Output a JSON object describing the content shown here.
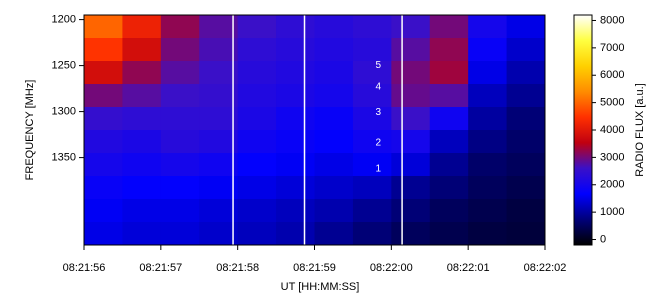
{
  "chart_data": {
    "type": "heatmap",
    "xlabel": "UT [HH:MM:SS]",
    "ylabel": "FREQUENCY [MHz]",
    "colorbar_label": "RADIO FLUX [a.u.]",
    "xlim": [
      30116,
      30122
    ],
    "ylim": [
      1195,
      1445
    ],
    "y_inverted": true,
    "xticks": [
      {
        "value": 30116,
        "label": "08:21:56"
      },
      {
        "value": 30117,
        "label": "08:21:57"
      },
      {
        "value": 30118,
        "label": "08:21:58"
      },
      {
        "value": 30119,
        "label": "08:21:59"
      },
      {
        "value": 30120,
        "label": "08:22:00"
      },
      {
        "value": 30121,
        "label": "08:22:01"
      },
      {
        "value": 30122,
        "label": "08:22:02"
      }
    ],
    "yticks": [
      1200,
      1250,
      1300,
      1350
    ],
    "clim": [
      -200,
      8200
    ],
    "cticks": [
      0,
      1000,
      2000,
      3000,
      4000,
      5000,
      6000,
      7000,
      8000
    ],
    "colormap": [
      "#000000",
      "#00007a",
      "#0000ff",
      "#3a10c8",
      "#c00010",
      "#ff3000",
      "#ff8c00",
      "#ffd000",
      "#ffff40",
      "#ffffff"
    ],
    "x": [
      30116.25,
      30116.75,
      30117.25,
      30117.75,
      30118.25,
      30118.75,
      30119.25,
      30119.75,
      30120.25,
      30120.75,
      30121.25,
      30121.75
    ],
    "y": [
      1207.5,
      1232.5,
      1257.5,
      1282.5,
      1307.5,
      1332.5,
      1357.5,
      1382.5,
      1407.5,
      1432.5
    ],
    "values": [
      [
        5000,
        4200,
        3200,
        2800,
        2600,
        2400,
        2300,
        2400,
        2600,
        3000,
        2000,
        1500
      ],
      [
        4500,
        3800,
        3000,
        2700,
        2400,
        2300,
        2200,
        2300,
        2800,
        3200,
        1800,
        1300
      ],
      [
        3800,
        3200,
        2800,
        2600,
        2300,
        2200,
        2100,
        2400,
        3000,
        3300,
        1500,
        1100
      ],
      [
        3000,
        2800,
        2600,
        2500,
        2200,
        2100,
        2000,
        2300,
        2900,
        2800,
        1200,
        900
      ],
      [
        2500,
        2400,
        2400,
        2400,
        2100,
        1900,
        1800,
        2100,
        2600,
        1900,
        1000,
        700
      ],
      [
        2200,
        2100,
        2300,
        2200,
        1900,
        1800,
        1700,
        1900,
        2000,
        1200,
        800,
        600
      ],
      [
        2000,
        1900,
        2000,
        1900,
        1700,
        1600,
        1500,
        1600,
        1400,
        900,
        600,
        500
      ],
      [
        1800,
        1700,
        1700,
        1600,
        1500,
        1400,
        1300,
        1200,
        900,
        700,
        500,
        400
      ],
      [
        1600,
        1500,
        1500,
        1400,
        1300,
        1200,
        1100,
        900,
        700,
        500,
        400,
        300
      ],
      [
        1500,
        1400,
        1400,
        1300,
        1200,
        1100,
        900,
        700,
        500,
        400,
        300,
        250
      ]
    ],
    "vlines": [
      30117.94,
      30118.87,
      30120.14
    ],
    "vline_color": "#ffffff",
    "annotations": [
      {
        "text": "5",
        "x": 30119.83,
        "y": 1250
      },
      {
        "text": "4",
        "x": 30119.83,
        "y": 1273
      },
      {
        "text": "3",
        "x": 30119.83,
        "y": 1301
      },
      {
        "text": "2",
        "x": 30119.83,
        "y": 1334
      },
      {
        "text": "1",
        "x": 30119.83,
        "y": 1362
      }
    ]
  }
}
